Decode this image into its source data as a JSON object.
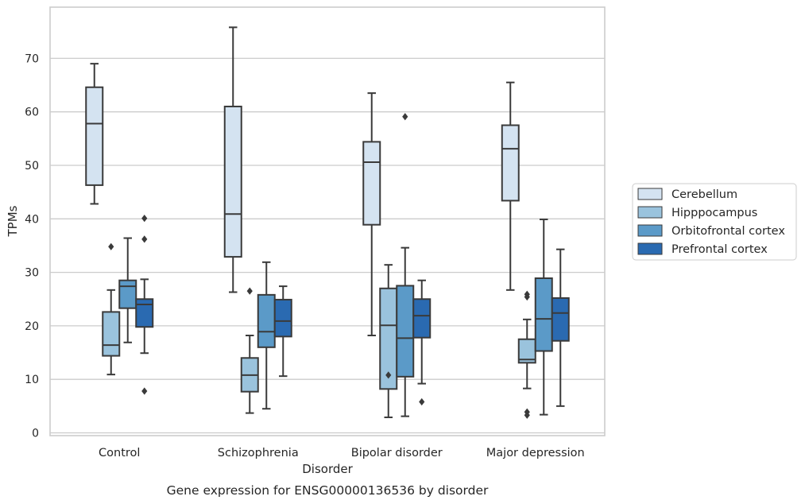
{
  "chart_data": {
    "type": "box",
    "title": "",
    "caption": "Gene expression for ENSG00000136536 by disorder",
    "xlabel": "Disorder",
    "ylabel": "TPMs",
    "ylim": [
      -0.5,
      79.5
    ],
    "yticks": [
      0,
      10,
      20,
      30,
      40,
      50,
      60,
      70
    ],
    "grid": "horizontal",
    "legend_position": "right",
    "categories": [
      "Control",
      "Schizophrenia",
      "Bipolar disorder",
      "Major depression"
    ],
    "series": [
      {
        "name": "Cerebellum",
        "color": "#d4e3f1",
        "boxes": [
          {
            "whisker_low": 42.8,
            "q1": 46.3,
            "median": 57.8,
            "q3": 64.6,
            "whisker_high": 69.0,
            "outliers": []
          },
          {
            "whisker_low": 26.3,
            "q1": 32.9,
            "median": 40.9,
            "q3": 61.0,
            "whisker_high": 75.8,
            "outliers": []
          },
          {
            "whisker_low": 18.2,
            "q1": 38.9,
            "median": 50.6,
            "q3": 54.4,
            "whisker_high": 63.5,
            "outliers": []
          },
          {
            "whisker_low": 26.7,
            "q1": 43.4,
            "median": 53.1,
            "q3": 57.5,
            "whisker_high": 65.5,
            "outliers": []
          }
        ]
      },
      {
        "name": "Hipppocampus",
        "color": "#9ac3dd",
        "boxes": [
          {
            "whisker_low": 10.9,
            "q1": 14.4,
            "median": 16.4,
            "q3": 22.6,
            "whisker_high": 26.7,
            "outliers": [
              34.8
            ]
          },
          {
            "whisker_low": 3.7,
            "q1": 7.7,
            "median": 10.8,
            "q3": 14.0,
            "whisker_high": 18.2,
            "outliers": [
              26.5
            ]
          },
          {
            "whisker_low": 2.9,
            "q1": 8.2,
            "median": 20.1,
            "q3": 27.0,
            "whisker_high": 31.4,
            "outliers": [
              10.8
            ]
          },
          {
            "whisker_low": 8.3,
            "q1": 13.1,
            "median": 13.7,
            "q3": 17.5,
            "whisker_high": 21.2,
            "outliers": [
              3.9,
              25.4,
              25.9,
              3.3
            ]
          }
        ]
      },
      {
        "name": "Orbitofrontal cortex",
        "color": "#5b9ac8",
        "boxes": [
          {
            "whisker_low": 16.9,
            "q1": 23.3,
            "median": 27.4,
            "q3": 28.5,
            "whisker_high": 36.4,
            "outliers": []
          },
          {
            "whisker_low": 4.5,
            "q1": 16.0,
            "median": 18.9,
            "q3": 25.8,
            "whisker_high": 31.9,
            "outliers": []
          },
          {
            "whisker_low": 3.1,
            "q1": 10.5,
            "median": 17.7,
            "q3": 27.5,
            "whisker_high": 34.6,
            "outliers": [
              59.1
            ]
          },
          {
            "whisker_low": 3.4,
            "q1": 15.3,
            "median": 21.3,
            "q3": 28.9,
            "whisker_high": 39.9,
            "outliers": []
          }
        ]
      },
      {
        "name": "Prefrontal cortex",
        "color": "#2a6ab1",
        "boxes": [
          {
            "whisker_low": 14.9,
            "q1": 19.8,
            "median": 24.0,
            "q3": 25.0,
            "whisker_high": 28.7,
            "outliers": [
              7.8,
              36.2,
              40.1
            ]
          },
          {
            "whisker_low": 10.6,
            "q1": 18.0,
            "median": 20.9,
            "q3": 24.9,
            "whisker_high": 27.4,
            "outliers": []
          },
          {
            "whisker_low": 9.2,
            "q1": 17.8,
            "median": 21.9,
            "q3": 25.0,
            "whisker_high": 28.5,
            "outliers": [
              5.8
            ]
          },
          {
            "whisker_low": 5.0,
            "q1": 17.2,
            "median": 22.4,
            "q3": 25.2,
            "whisker_high": 34.3,
            "outliers": []
          }
        ]
      }
    ]
  }
}
